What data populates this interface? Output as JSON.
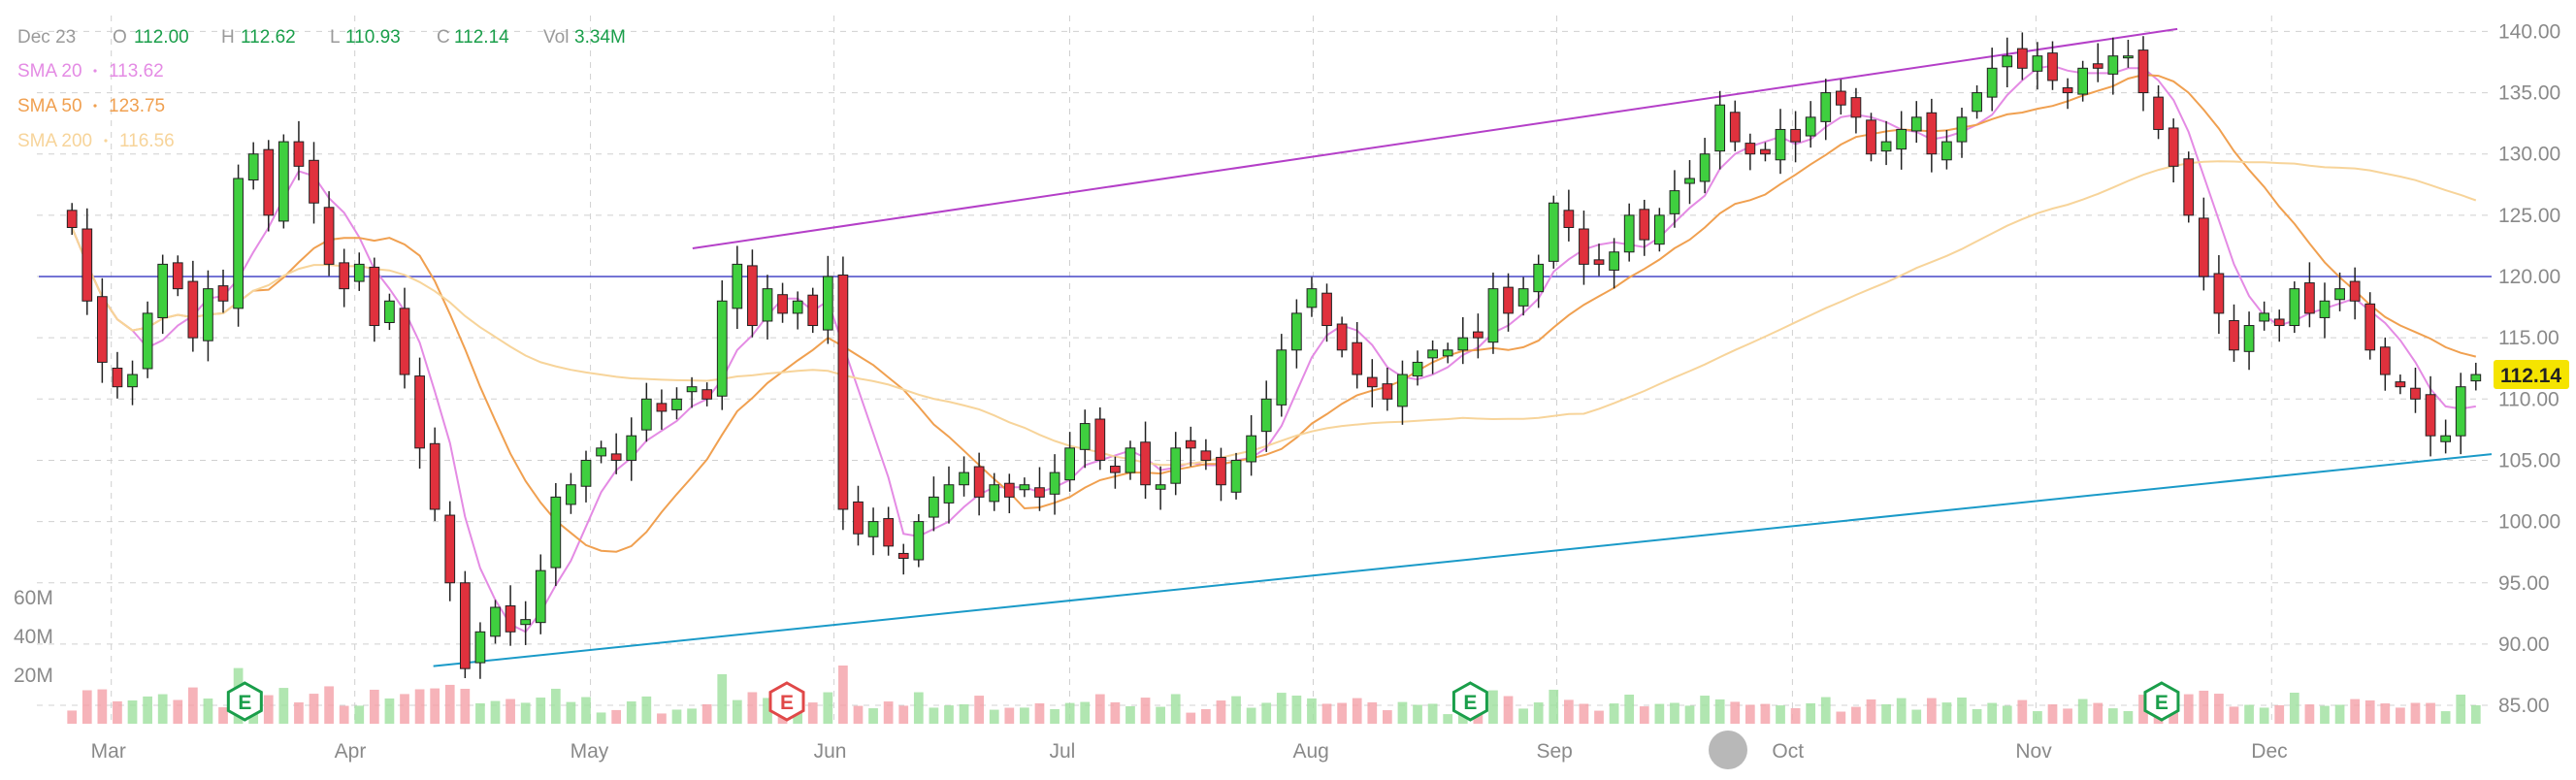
{
  "chart_data": {
    "type": "candlestick",
    "legend": {
      "date": "Dec 23",
      "open_label": "O",
      "open": "112.00",
      "high_label": "H",
      "high": "112.62",
      "low_label": "L",
      "low": "110.93",
      "close_label": "C",
      "close": "112.14",
      "vol_label": "Vol",
      "vol": "3.34M"
    },
    "indicators": [
      {
        "name": "SMA 20",
        "value": "113.62",
        "color": "#e48be4"
      },
      {
        "name": "SMA 50",
        "value": "123.75",
        "color": "#f0a050"
      },
      {
        "name": "SMA 200",
        "value": "116.56",
        "color": "#f7d49a"
      }
    ],
    "y_axis": {
      "ticks": [
        85,
        90,
        95,
        100,
        105,
        110,
        115,
        120,
        125,
        130,
        135,
        140
      ],
      "ylim": [
        83.5,
        141.3
      ]
    },
    "volume_axis": {
      "ticks": [
        "20M",
        "40M",
        "60M"
      ]
    },
    "x_axis": {
      "months": [
        {
          "label": "Mar",
          "day": 7
        },
        {
          "label": "Apr",
          "day": 38
        },
        {
          "label": "May",
          "day": 68
        },
        {
          "label": "Jun",
          "day": 99
        },
        {
          "label": "Jul",
          "day": 129
        },
        {
          "label": "Aug",
          "day": 160
        },
        {
          "label": "Sep",
          "day": 191
        },
        {
          "label": "Oct",
          "day": 221
        },
        {
          "label": "Nov",
          "day": 252
        },
        {
          "label": "Dec",
          "day": 282
        }
      ],
      "range_days": [
        0,
        310
      ]
    },
    "price_label": {
      "value": "112.14",
      "color": "#f5e400"
    },
    "horizontal_line": {
      "value": 120,
      "color": "#5555cc"
    },
    "trendlines": [
      {
        "color": "#b43fc8",
        "x": [
          81,
          270
        ],
        "y": [
          122.3,
          140.2
        ]
      },
      {
        "color": "#1a9ac8",
        "x": [
          48,
          310
        ],
        "y": [
          88.2,
          105.5
        ]
      }
    ],
    "earnings_markers": [
      {
        "day": 24,
        "kind": "E",
        "color": "#1a9e4a"
      },
      {
        "day": 93,
        "kind": "E",
        "color": "#e04848"
      },
      {
        "day": 180,
        "kind": "E",
        "color": "#1a9e4a"
      },
      {
        "day": 268,
        "kind": "E",
        "color": "#1a9e4a"
      }
    ],
    "candles_close": [
      124,
      118,
      113,
      111,
      112,
      117,
      121,
      119,
      115,
      119,
      118,
      128,
      130,
      125,
      131,
      129,
      126,
      121,
      119,
      121,
      116,
      118,
      112,
      106,
      101,
      95,
      88,
      91,
      93,
      91,
      92,
      96,
      102,
      103,
      105,
      106,
      105,
      107,
      110,
      109,
      110,
      111,
      110,
      118,
      121,
      116,
      119,
      117,
      118,
      116,
      120,
      101,
      99,
      100,
      98,
      97,
      100,
      102,
      103,
      104,
      102,
      103,
      102,
      103,
      102,
      104,
      106,
      108,
      105,
      104,
      106,
      103,
      103,
      106,
      106,
      105,
      103,
      105,
      107,
      110,
      114,
      117,
      119,
      116,
      114,
      112,
      111,
      110,
      112,
      113,
      114,
      114,
      115,
      115,
      119,
      117,
      119,
      121,
      126,
      124,
      121,
      121,
      122,
      125,
      123,
      125,
      127,
      128,
      130,
      134,
      131,
      130,
      130,
      132,
      131,
      133,
      135,
      134,
      133,
      130,
      131,
      132,
      133,
      130,
      131,
      133,
      135,
      137,
      138,
      137,
      138,
      136,
      135,
      137,
      137,
      138,
      138,
      135,
      132,
      129,
      125,
      120,
      117,
      114,
      116,
      117,
      116,
      119,
      117,
      118,
      119,
      118,
      114,
      112,
      111,
      110,
      107,
      107,
      111,
      112
    ]
  }
}
